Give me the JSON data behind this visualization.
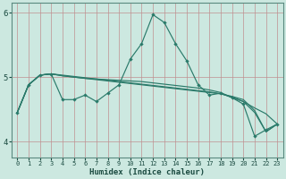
{
  "title": "",
  "xlabel": "Humidex (Indice chaleur)",
  "bg_color": "#cce8e0",
  "line_color": "#2a7a6a",
  "ylim": [
    3.75,
    6.15
  ],
  "xlim": [
    -0.5,
    23.5
  ],
  "yticks": [
    4,
    5,
    6
  ],
  "xticks": [
    0,
    1,
    2,
    3,
    4,
    5,
    6,
    7,
    8,
    9,
    10,
    11,
    12,
    13,
    14,
    15,
    16,
    17,
    18,
    19,
    20,
    21,
    22,
    23
  ],
  "line1": [
    4.45,
    4.88,
    5.03,
    5.05,
    4.65,
    4.65,
    4.72,
    4.62,
    4.75,
    4.88,
    5.28,
    5.52,
    5.97,
    5.85,
    5.52,
    5.25,
    4.88,
    4.72,
    4.75,
    4.68,
    4.58,
    4.08,
    4.18,
    4.27
  ],
  "line2": [
    4.45,
    4.88,
    5.03,
    5.05,
    5.03,
    5.01,
    4.99,
    4.97,
    4.95,
    4.93,
    4.91,
    4.89,
    4.87,
    4.85,
    4.83,
    4.81,
    4.79,
    4.77,
    4.74,
    4.7,
    4.65,
    4.48,
    4.15,
    4.27
  ],
  "line3": [
    4.45,
    4.88,
    5.03,
    5.05,
    5.02,
    5.0,
    4.98,
    4.96,
    4.94,
    4.92,
    4.9,
    4.88,
    4.86,
    4.84,
    4.82,
    4.8,
    4.78,
    4.76,
    4.74,
    4.69,
    4.62,
    4.45,
    4.15,
    4.27
  ],
  "line4": [
    4.45,
    4.88,
    5.03,
    5.05,
    5.02,
    5.0,
    4.98,
    4.97,
    4.96,
    4.95,
    4.94,
    4.93,
    4.91,
    4.89,
    4.87,
    4.85,
    4.83,
    4.8,
    4.76,
    4.68,
    4.62,
    4.52,
    4.43,
    4.27
  ]
}
